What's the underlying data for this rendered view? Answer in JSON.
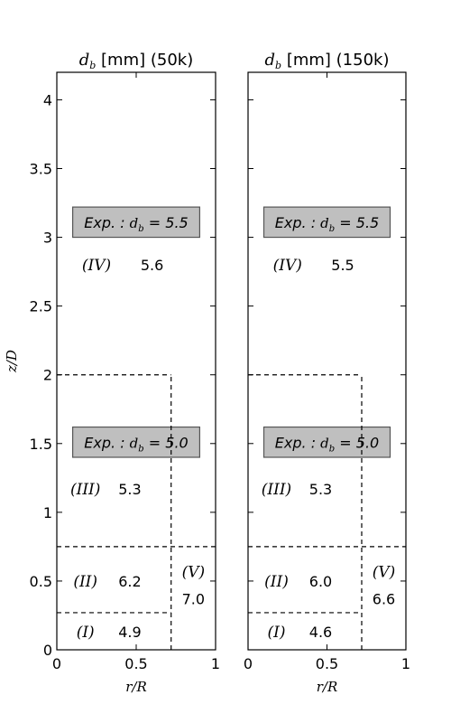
{
  "chart_data": [
    {
      "type": "table",
      "title": {
        "var": "d",
        "sub": "b",
        "rest": " [mm] (50k)"
      },
      "xlabel": "r/R",
      "ylabel": "z/D",
      "xlim": [
        0,
        1
      ],
      "ylim": [
        0,
        4.2
      ],
      "xticks": [
        {
          "v": 0,
          "label": "0"
        },
        {
          "v": 0.5,
          "label": "0.5"
        },
        {
          "v": 1,
          "label": "1"
        }
      ],
      "yticks": [
        {
          "v": 0,
          "label": "0"
        },
        {
          "v": 0.5,
          "label": "0.5"
        },
        {
          "v": 1,
          "label": "1"
        },
        {
          "v": 1.5,
          "label": "1.5"
        },
        {
          "v": 2,
          "label": "2"
        },
        {
          "v": 2.5,
          "label": "2.5"
        },
        {
          "v": 3,
          "label": "3"
        },
        {
          "v": 3.5,
          "label": "3.5"
        },
        {
          "v": 4,
          "label": "4"
        }
      ],
      "show_ylabel": true,
      "boundaries": [
        {
          "x1": 0,
          "y1": 2.0,
          "x2": 0.72,
          "y2": 2.0
        },
        {
          "x1": 0.72,
          "y1": 0,
          "x2": 0.72,
          "y2": 2.0
        },
        {
          "x1": 0,
          "y1": 0.75,
          "x2": 1,
          "y2": 0.75
        },
        {
          "x1": 0,
          "y1": 0.27,
          "x2": 0.72,
          "y2": 0.27
        }
      ],
      "regions": [
        {
          "label": "(I)",
          "value": "4.9",
          "lx": 0.18,
          "ly": 0.13,
          "vx": 0.46,
          "vy": 0.13
        },
        {
          "label": "(II)",
          "value": "6.2",
          "lx": 0.18,
          "ly": 0.5,
          "vx": 0.46,
          "vy": 0.5
        },
        {
          "label": "(III)",
          "value": "5.3",
          "lx": 0.18,
          "ly": 1.17,
          "vx": 0.46,
          "vy": 1.17
        },
        {
          "label": "(IV)",
          "value": "5.6",
          "lx": 0.25,
          "ly": 2.8,
          "vx": 0.6,
          "vy": 2.8
        },
        {
          "label": "(V)",
          "value": "7.0",
          "lx": 0.86,
          "ly": 0.57,
          "vx": 0.86,
          "vy": 0.37
        }
      ],
      "experiments": [
        {
          "prefix": "Exp. : ",
          "var": "d",
          "sub": "b",
          "suffix": " = 5.5",
          "x1": 0.1,
          "x2": 0.9,
          "y1": 3.0,
          "y2": 3.22,
          "tx": 0.5,
          "ty": 3.11
        },
        {
          "prefix": "Exp. : ",
          "var": "d",
          "sub": "b",
          "suffix": " = 5.0",
          "x1": 0.1,
          "x2": 0.9,
          "y1": 1.4,
          "y2": 1.62,
          "tx": 0.5,
          "ty": 1.51
        }
      ]
    },
    {
      "type": "table",
      "title": {
        "var": "d",
        "sub": "b",
        "rest": " [mm] (150k)"
      },
      "xlabel": "r/R",
      "ylabel": "",
      "xlim": [
        0,
        1
      ],
      "ylim": [
        0,
        4.2
      ],
      "xticks": [
        {
          "v": 0,
          "label": "0"
        },
        {
          "v": 0.5,
          "label": "0.5"
        },
        {
          "v": 1,
          "label": "1"
        }
      ],
      "yticks": [
        {
          "v": 0,
          "label": ""
        },
        {
          "v": 0.5,
          "label": ""
        },
        {
          "v": 1,
          "label": ""
        },
        {
          "v": 1.5,
          "label": ""
        },
        {
          "v": 2,
          "label": ""
        },
        {
          "v": 2.5,
          "label": ""
        },
        {
          "v": 3,
          "label": ""
        },
        {
          "v": 3.5,
          "label": ""
        },
        {
          "v": 4,
          "label": ""
        }
      ],
      "show_ylabel": false,
      "boundaries": [
        {
          "x1": 0,
          "y1": 2.0,
          "x2": 0.72,
          "y2": 2.0
        },
        {
          "x1": 0.72,
          "y1": 0,
          "x2": 0.72,
          "y2": 2.0
        },
        {
          "x1": 0,
          "y1": 0.75,
          "x2": 1,
          "y2": 0.75
        },
        {
          "x1": 0,
          "y1": 0.27,
          "x2": 0.72,
          "y2": 0.27
        }
      ],
      "regions": [
        {
          "label": "(I)",
          "value": "4.6",
          "lx": 0.18,
          "ly": 0.13,
          "vx": 0.46,
          "vy": 0.13
        },
        {
          "label": "(II)",
          "value": "6.0",
          "lx": 0.18,
          "ly": 0.5,
          "vx": 0.46,
          "vy": 0.5
        },
        {
          "label": "(III)",
          "value": "5.3",
          "lx": 0.18,
          "ly": 1.17,
          "vx": 0.46,
          "vy": 1.17
        },
        {
          "label": "(IV)",
          "value": "5.5",
          "lx": 0.25,
          "ly": 2.8,
          "vx": 0.6,
          "vy": 2.8
        },
        {
          "label": "(V)",
          "value": "6.6",
          "lx": 0.86,
          "ly": 0.57,
          "vx": 0.86,
          "vy": 0.37
        }
      ],
      "experiments": [
        {
          "prefix": "Exp. : ",
          "var": "d",
          "sub": "b",
          "suffix": " = 5.5",
          "x1": 0.1,
          "x2": 0.9,
          "y1": 3.0,
          "y2": 3.22,
          "tx": 0.5,
          "ty": 3.11
        },
        {
          "prefix": "Exp. : ",
          "var": "d",
          "sub": "b",
          "suffix": " = 5.0",
          "x1": 0.1,
          "x2": 0.9,
          "y1": 1.4,
          "y2": 1.62,
          "tx": 0.5,
          "ty": 1.51
        }
      ]
    }
  ],
  "colors": {
    "exp_box_fill": "#bfbfbf",
    "exp_box_stroke": "#555555",
    "axes": "#000000"
  }
}
